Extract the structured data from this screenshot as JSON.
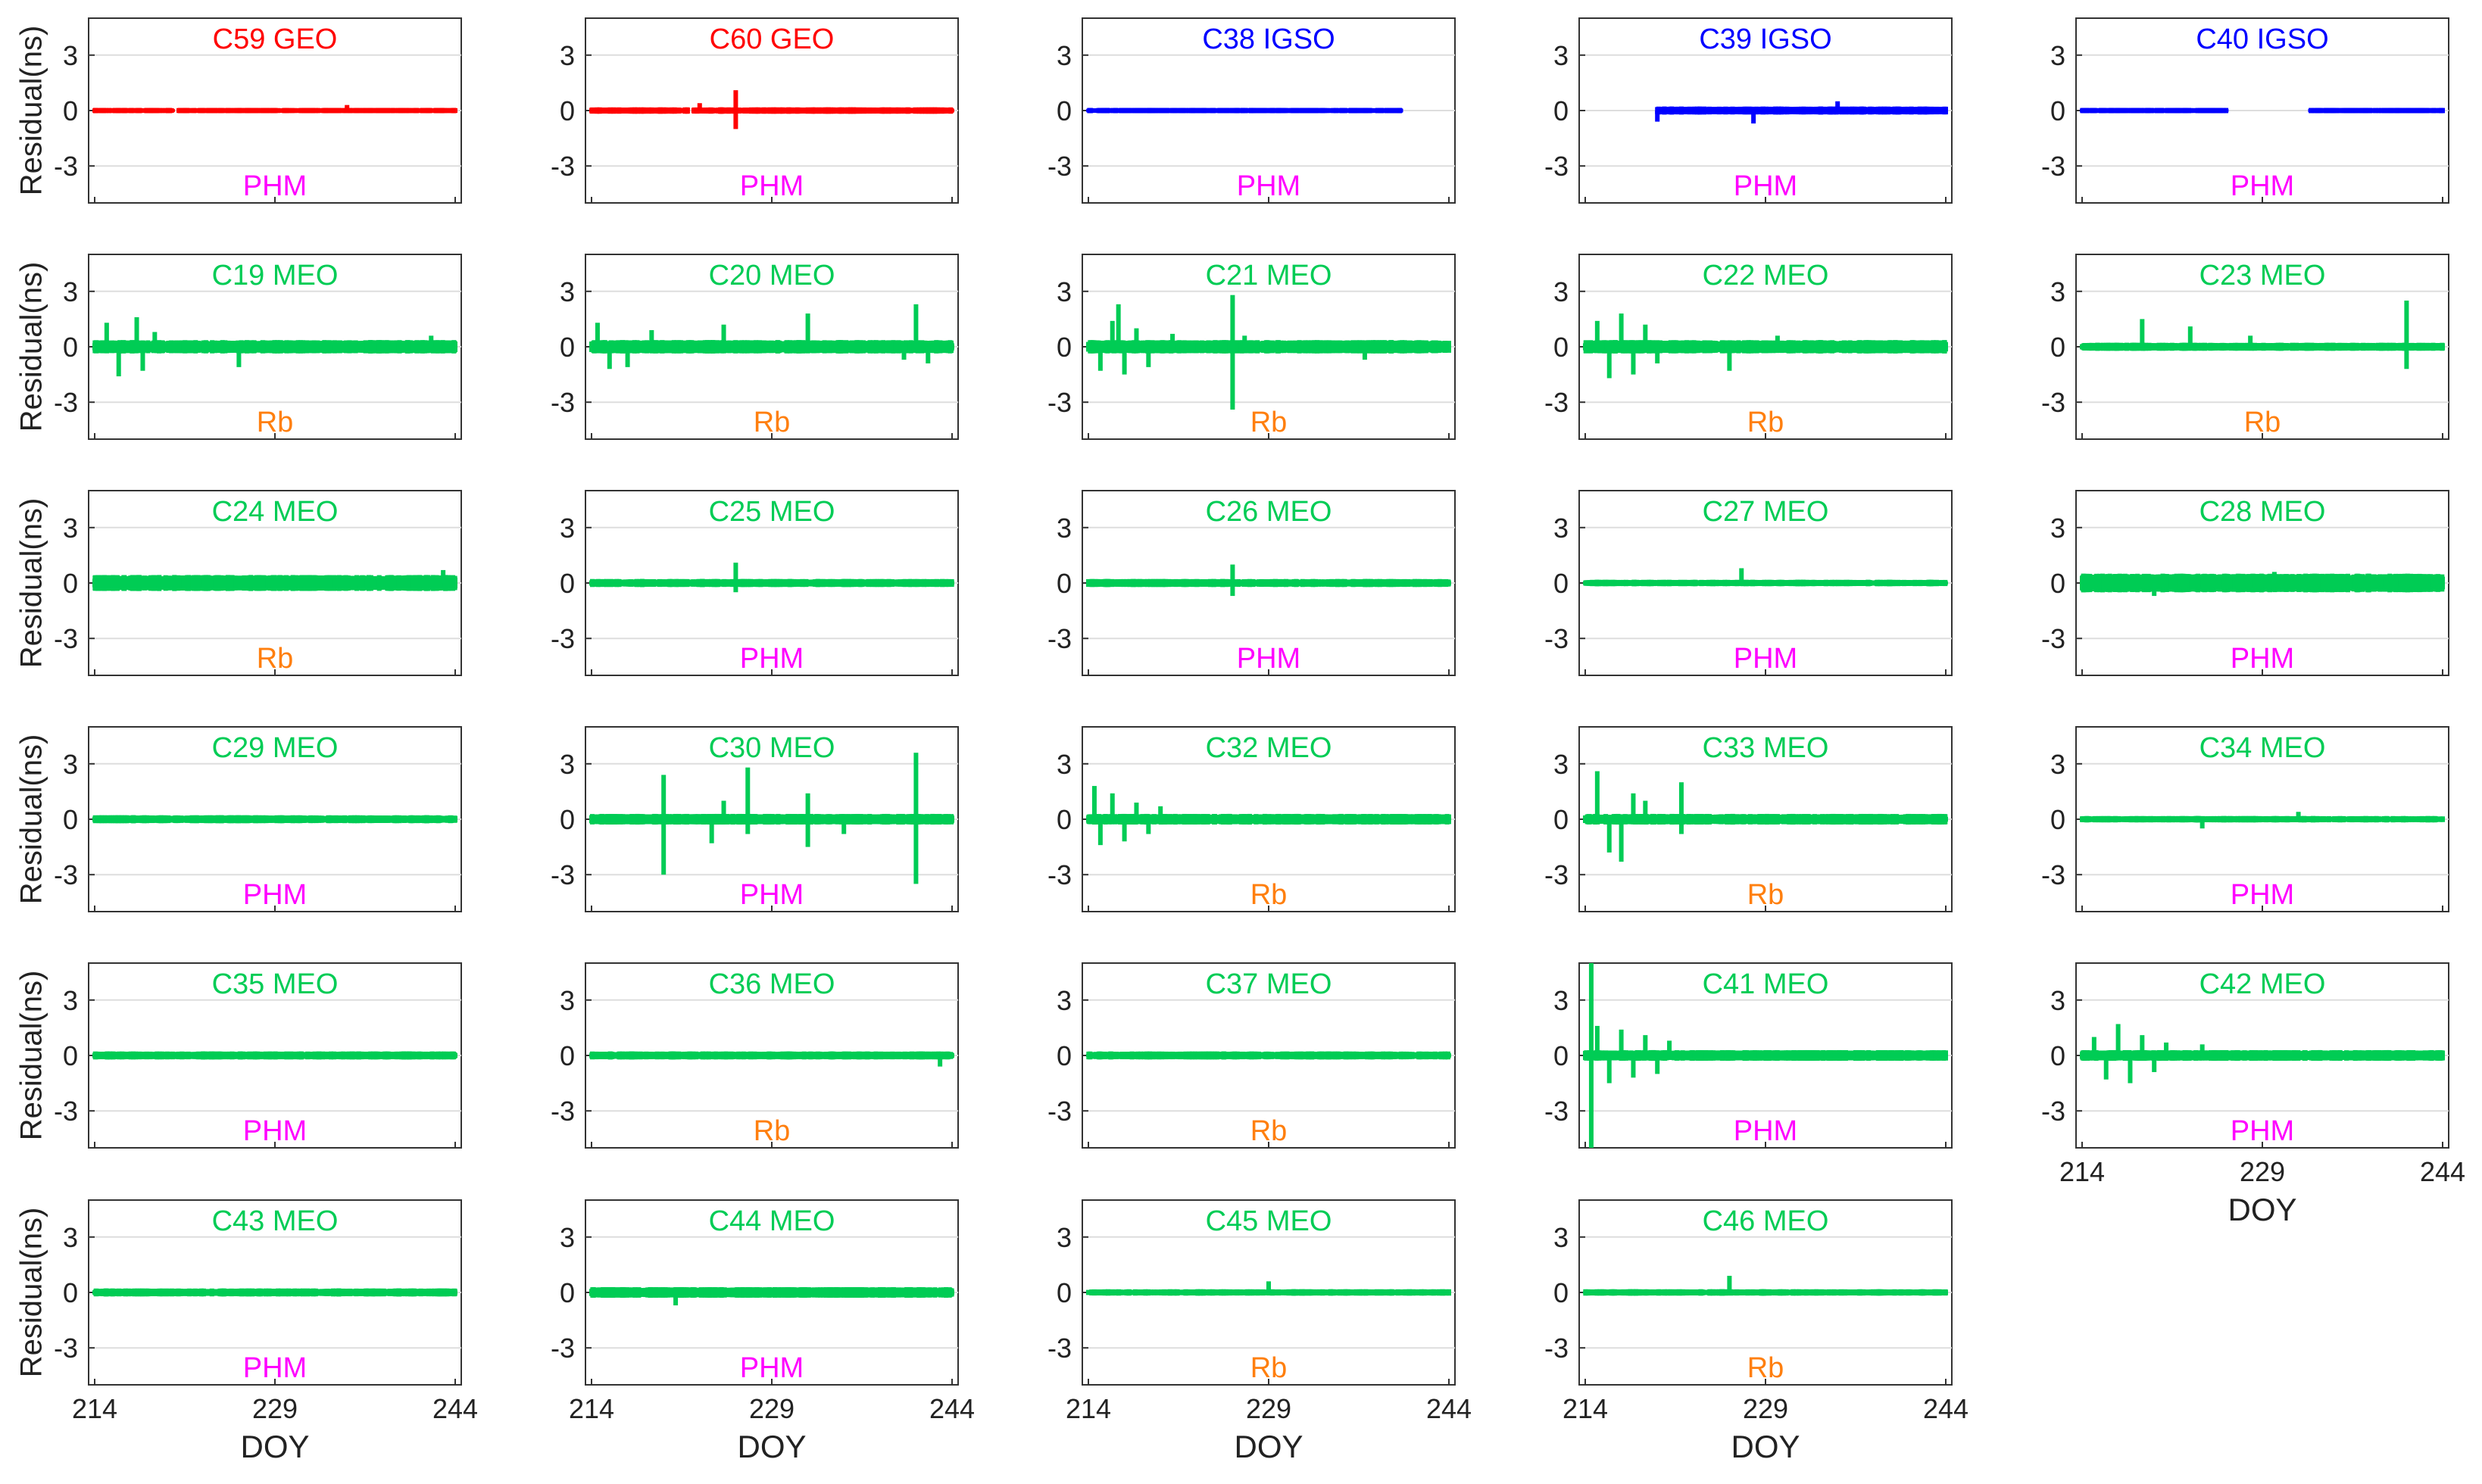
{
  "figure": {
    "ylabel": "Residual(ns)",
    "xlabel": "DOY",
    "x_ticks": [
      "214",
      "229",
      "244"
    ],
    "y_ticks": [
      "3",
      "0",
      "-3"
    ],
    "colors": {
      "GEO": "#ff0000",
      "IGSO": "#0000ff",
      "MEO": "#00cc55",
      "PHM": "#ff00ff",
      "Rb": "#ff7f0e",
      "grid": "#dddddd",
      "axis": "#333333"
    }
  },
  "chart_data": [
    {
      "type": "scatter",
      "title": "C59 GEO",
      "orbit": "GEO",
      "clock": "PHM",
      "xlim": [
        214,
        244
      ],
      "ylim": [
        -5,
        5
      ],
      "amp": 0.1,
      "coverage": [
        [
          214,
          220.5
        ],
        [
          221,
          244
        ]
      ],
      "spikes": [
        [
          235,
          0.3
        ]
      ]
    },
    {
      "type": "scatter",
      "title": "C60 GEO",
      "orbit": "GEO",
      "clock": "PHM",
      "xlim": [
        214,
        244
      ],
      "ylim": [
        -5,
        5
      ],
      "amp": 0.12,
      "coverage": [
        [
          214,
          222
        ],
        [
          222.5,
          244
        ]
      ],
      "spikes": [
        [
          226,
          1.1
        ],
        [
          226,
          -1.0
        ],
        [
          223,
          0.4
        ]
      ]
    },
    {
      "type": "scatter",
      "title": "C38 IGSO",
      "orbit": "IGSO",
      "clock": "PHM",
      "xlim": [
        214,
        244
      ],
      "ylim": [
        -5,
        5
      ],
      "amp": 0.1,
      "coverage": [
        [
          214,
          240
        ]
      ],
      "spikes": []
    },
    {
      "type": "scatter",
      "title": "C39 IGSO",
      "orbit": "IGSO",
      "clock": "PHM",
      "xlim": [
        214,
        244
      ],
      "ylim": [
        -5,
        5
      ],
      "amp": 0.15,
      "coverage": [
        [
          220,
          244
        ]
      ],
      "spikes": [
        [
          220,
          -0.6
        ],
        [
          228,
          -0.7
        ],
        [
          235,
          0.5
        ]
      ]
    },
    {
      "type": "scatter",
      "title": "C40 IGSO",
      "orbit": "IGSO",
      "clock": "PHM",
      "xlim": [
        214,
        244
      ],
      "ylim": [
        -5,
        5
      ],
      "amp": 0.1,
      "coverage": [
        [
          214,
          226
        ],
        [
          233,
          244
        ]
      ],
      "spikes": []
    },
    {
      "type": "scatter",
      "title": "C19 MEO",
      "orbit": "MEO",
      "clock": "Rb",
      "xlim": [
        214,
        244
      ],
      "ylim": [
        -5,
        5
      ],
      "amp": 0.25,
      "coverage": [
        [
          214,
          244
        ]
      ],
      "spikes": [
        [
          215,
          1.3
        ],
        [
          216,
          -1.6
        ],
        [
          217.5,
          1.6
        ],
        [
          218,
          -1.3
        ],
        [
          219,
          0.8
        ],
        [
          226,
          -1.1
        ],
        [
          242,
          0.6
        ]
      ]
    },
    {
      "type": "scatter",
      "title": "C20 MEO",
      "orbit": "MEO",
      "clock": "Rb",
      "xlim": [
        214,
        244
      ],
      "ylim": [
        -5,
        5
      ],
      "amp": 0.25,
      "coverage": [
        [
          214,
          244
        ]
      ],
      "spikes": [
        [
          214.5,
          1.3
        ],
        [
          215.5,
          -1.2
        ],
        [
          217,
          -1.1
        ],
        [
          219,
          0.9
        ],
        [
          225,
          1.2
        ],
        [
          232,
          1.8
        ],
        [
          240,
          -0.7
        ],
        [
          241,
          2.3
        ],
        [
          242,
          -0.9
        ]
      ]
    },
    {
      "type": "scatter",
      "title": "C21 MEO",
      "orbit": "MEO",
      "clock": "Rb",
      "xlim": [
        214,
        244
      ],
      "ylim": [
        -5,
        5
      ],
      "amp": 0.25,
      "coverage": [
        [
          214,
          244
        ]
      ],
      "spikes": [
        [
          215,
          -1.3
        ],
        [
          216,
          1.4
        ],
        [
          216.5,
          2.3
        ],
        [
          217,
          -1.5
        ],
        [
          218,
          1.0
        ],
        [
          219,
          -1.1
        ],
        [
          221,
          0.7
        ],
        [
          226,
          2.8
        ],
        [
          226,
          -3.4
        ],
        [
          227,
          0.6
        ],
        [
          237,
          -0.7
        ]
      ]
    },
    {
      "type": "scatter",
      "title": "C22 MEO",
      "orbit": "MEO",
      "clock": "Rb",
      "xlim": [
        214,
        244
      ],
      "ylim": [
        -5,
        5
      ],
      "amp": 0.25,
      "coverage": [
        [
          214,
          244
        ]
      ],
      "spikes": [
        [
          215,
          1.4
        ],
        [
          216,
          -1.7
        ],
        [
          217,
          1.8
        ],
        [
          218,
          -1.5
        ],
        [
          219,
          1.2
        ],
        [
          220,
          -0.9
        ],
        [
          226,
          -1.3
        ],
        [
          230,
          0.6
        ]
      ]
    },
    {
      "type": "scatter",
      "title": "C23 MEO",
      "orbit": "MEO",
      "clock": "Rb",
      "xlim": [
        214,
        244
      ],
      "ylim": [
        -5,
        5
      ],
      "amp": 0.15,
      "coverage": [
        [
          214,
          244
        ]
      ],
      "spikes": [
        [
          219,
          1.5
        ],
        [
          223,
          1.1
        ],
        [
          228,
          0.6
        ],
        [
          241,
          2.5
        ],
        [
          241,
          -1.2
        ]
      ]
    },
    {
      "type": "scatter",
      "title": "C24 MEO",
      "orbit": "MEO",
      "clock": "Rb",
      "xlim": [
        214,
        244
      ],
      "ylim": [
        -5,
        5
      ],
      "amp": 0.3,
      "coverage": [
        [
          214,
          244
        ]
      ],
      "spikes": [
        [
          243,
          0.7
        ]
      ]
    },
    {
      "type": "scatter",
      "title": "C25 MEO",
      "orbit": "MEO",
      "clock": "PHM",
      "xlim": [
        214,
        244
      ],
      "ylim": [
        -5,
        5
      ],
      "amp": 0.15,
      "coverage": [
        [
          214,
          244
        ]
      ],
      "spikes": [
        [
          226,
          1.1
        ],
        [
          226,
          -0.5
        ]
      ]
    },
    {
      "type": "scatter",
      "title": "C26 MEO",
      "orbit": "MEO",
      "clock": "PHM",
      "xlim": [
        214,
        244
      ],
      "ylim": [
        -5,
        5
      ],
      "amp": 0.15,
      "coverage": [
        [
          214,
          244
        ]
      ],
      "spikes": [
        [
          226,
          1.0
        ],
        [
          226,
          -0.7
        ]
      ]
    },
    {
      "type": "scatter",
      "title": "C27 MEO",
      "orbit": "MEO",
      "clock": "PHM",
      "xlim": [
        214,
        244
      ],
      "ylim": [
        -5,
        5
      ],
      "amp": 0.12,
      "coverage": [
        [
          214,
          244
        ]
      ],
      "spikes": [
        [
          227,
          0.8
        ]
      ]
    },
    {
      "type": "scatter",
      "title": "C28 MEO",
      "orbit": "MEO",
      "clock": "PHM",
      "xlim": [
        214,
        244
      ],
      "ylim": [
        -5,
        5
      ],
      "amp": 0.35,
      "coverage": [
        [
          214,
          244
        ]
      ],
      "spikes": [
        [
          220,
          -0.7
        ],
        [
          230,
          0.6
        ]
      ]
    },
    {
      "type": "scatter",
      "title": "C29 MEO",
      "orbit": "MEO",
      "clock": "PHM",
      "xlim": [
        214,
        244
      ],
      "ylim": [
        -5,
        5
      ],
      "amp": 0.15,
      "coverage": [
        [
          214,
          244
        ]
      ],
      "spikes": []
    },
    {
      "type": "scatter",
      "title": "C30 MEO",
      "orbit": "MEO",
      "clock": "PHM",
      "xlim": [
        214,
        244
      ],
      "ylim": [
        -5,
        5
      ],
      "amp": 0.2,
      "coverage": [
        [
          214,
          244
        ]
      ],
      "spikes": [
        [
          220,
          2.4
        ],
        [
          220,
          -3.0
        ],
        [
          224,
          -1.3
        ],
        [
          225,
          1.0
        ],
        [
          227,
          2.8
        ],
        [
          227,
          -0.8
        ],
        [
          232,
          1.4
        ],
        [
          232,
          -1.5
        ],
        [
          235,
          -0.8
        ],
        [
          241,
          3.6
        ],
        [
          241,
          -3.5
        ]
      ]
    },
    {
      "type": "scatter",
      "title": "C32 MEO",
      "orbit": "MEO",
      "clock": "Rb",
      "xlim": [
        214,
        244
      ],
      "ylim": [
        -5,
        5
      ],
      "amp": 0.2,
      "coverage": [
        [
          214,
          244
        ]
      ],
      "spikes": [
        [
          214.5,
          1.8
        ],
        [
          215,
          -1.4
        ],
        [
          216,
          1.4
        ],
        [
          217,
          -1.2
        ],
        [
          218,
          0.9
        ],
        [
          219,
          -0.8
        ],
        [
          220,
          0.7
        ]
      ]
    },
    {
      "type": "scatter",
      "title": "C33 MEO",
      "orbit": "MEO",
      "clock": "Rb",
      "xlim": [
        214,
        244
      ],
      "ylim": [
        -5,
        5
      ],
      "amp": 0.2,
      "coverage": [
        [
          214,
          244
        ]
      ],
      "spikes": [
        [
          215,
          2.6
        ],
        [
          216,
          -1.8
        ],
        [
          217,
          -2.3
        ],
        [
          218,
          1.4
        ],
        [
          219,
          1.0
        ],
        [
          222,
          2.0
        ],
        [
          222,
          -0.8
        ]
      ]
    },
    {
      "type": "scatter",
      "title": "C34 MEO",
      "orbit": "MEO",
      "clock": "PHM",
      "xlim": [
        214,
        244
      ],
      "ylim": [
        -5,
        5
      ],
      "amp": 0.12,
      "coverage": [
        [
          214,
          244
        ]
      ],
      "spikes": [
        [
          224,
          -0.5
        ],
        [
          232,
          0.4
        ]
      ]
    },
    {
      "type": "scatter",
      "title": "C35 MEO",
      "orbit": "MEO",
      "clock": "PHM",
      "xlim": [
        214,
        244
      ],
      "ylim": [
        -5,
        5
      ],
      "amp": 0.15,
      "coverage": [
        [
          214,
          244
        ]
      ],
      "spikes": []
    },
    {
      "type": "scatter",
      "title": "C36 MEO",
      "orbit": "MEO",
      "clock": "Rb",
      "xlim": [
        214,
        244
      ],
      "ylim": [
        -5,
        5
      ],
      "amp": 0.15,
      "coverage": [
        [
          214,
          244
        ]
      ],
      "spikes": [
        [
          243,
          -0.6
        ]
      ]
    },
    {
      "type": "scatter",
      "title": "C37 MEO",
      "orbit": "MEO",
      "clock": "Rb",
      "xlim": [
        214,
        244
      ],
      "ylim": [
        -5,
        5
      ],
      "amp": 0.15,
      "coverage": [
        [
          214,
          244
        ]
      ],
      "spikes": []
    },
    {
      "type": "scatter",
      "title": "C41 MEO",
      "orbit": "MEO",
      "clock": "PHM",
      "xlim": [
        214,
        244
      ],
      "ylim": [
        -5,
        5
      ],
      "amp": 0.2,
      "coverage": [
        [
          214,
          244
        ]
      ],
      "spikes": [
        [
          214.5,
          5.0
        ],
        [
          214.5,
          -5.0
        ],
        [
          215,
          1.6
        ],
        [
          216,
          -1.5
        ],
        [
          217,
          1.4
        ],
        [
          218,
          -1.2
        ],
        [
          219,
          1.1
        ],
        [
          220,
          -1.0
        ],
        [
          221,
          0.8
        ]
      ]
    },
    {
      "type": "scatter",
      "title": "C42 MEO",
      "orbit": "MEO",
      "clock": "PHM",
      "xlim": [
        214,
        244
      ],
      "ylim": [
        -5,
        5
      ],
      "amp": 0.2,
      "coverage": [
        [
          214,
          244
        ]
      ],
      "spikes": [
        [
          215,
          1.0
        ],
        [
          216,
          -1.3
        ],
        [
          217,
          1.7
        ],
        [
          218,
          -1.5
        ],
        [
          219,
          1.1
        ],
        [
          220,
          -0.9
        ],
        [
          221,
          0.7
        ],
        [
          224,
          0.6
        ]
      ]
    },
    {
      "type": "scatter",
      "title": "C43 MEO",
      "orbit": "MEO",
      "clock": "PHM",
      "xlim": [
        214,
        244
      ],
      "ylim": [
        -5,
        5
      ],
      "amp": 0.15,
      "coverage": [
        [
          214,
          244
        ]
      ],
      "spikes": []
    },
    {
      "type": "scatter",
      "title": "C44 MEO",
      "orbit": "MEO",
      "clock": "PHM",
      "xlim": [
        214,
        244
      ],
      "ylim": [
        -5,
        5
      ],
      "amp": 0.2,
      "coverage": [
        [
          214,
          244
        ]
      ],
      "spikes": [
        [
          221,
          -0.7
        ]
      ]
    },
    {
      "type": "scatter",
      "title": "C45 MEO",
      "orbit": "MEO",
      "clock": "Rb",
      "xlim": [
        214,
        244
      ],
      "ylim": [
        -5,
        5
      ],
      "amp": 0.12,
      "coverage": [
        [
          214,
          244
        ]
      ],
      "spikes": [
        [
          229,
          0.6
        ]
      ]
    },
    {
      "type": "scatter",
      "title": "C46 MEO",
      "orbit": "MEO",
      "clock": "Rb",
      "xlim": [
        214,
        244
      ],
      "ylim": [
        -5,
        5
      ],
      "amp": 0.12,
      "coverage": [
        [
          214,
          244
        ]
      ],
      "spikes": [
        [
          226,
          0.9
        ]
      ]
    }
  ]
}
